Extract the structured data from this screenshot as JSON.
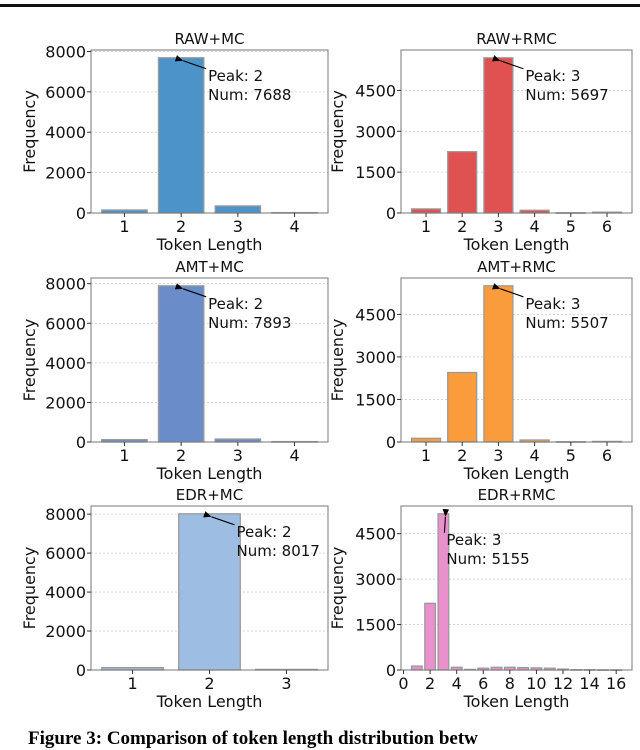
{
  "caption": {
    "label": "Figure 3:",
    "text": "Comparison of token length distribution betw"
  },
  "chart_data": [
    {
      "type": "bar",
      "title": "RAW+MC",
      "xlabel": "Token Length",
      "ylabel": "Frequency",
      "color": "#4b93c9",
      "categories": [
        1,
        2,
        3,
        4
      ],
      "values": [
        150,
        7688,
        350,
        20
      ],
      "xticks": [
        1,
        2,
        3,
        4
      ],
      "yticks": [
        0,
        2000,
        4000,
        6000,
        8000
      ],
      "ylim": [
        0,
        8072
      ],
      "annotation": {
        "peak": 2,
        "num": 7688,
        "line1": "Peak: 2",
        "line2": "Num: 7688"
      },
      "grid": true
    },
    {
      "type": "bar",
      "title": "RAW+RMC",
      "xlabel": "Token Length",
      "ylabel": "Frequency",
      "color": "#e05252",
      "categories": [
        1,
        2,
        3,
        4,
        5,
        6
      ],
      "values": [
        150,
        2250,
        5697,
        100,
        10,
        30
      ],
      "xticks": [
        1,
        2,
        3,
        4,
        5,
        6
      ],
      "yticks": [
        0,
        1500,
        3000,
        4500
      ],
      "ylim": [
        0,
        5982
      ],
      "annotation": {
        "peak": 3,
        "num": 5697,
        "line1": "Peak: 3",
        "line2": "Num: 5697"
      },
      "grid": true
    },
    {
      "type": "bar",
      "title": "AMT+MC",
      "xlabel": "Token Length",
      "ylabel": "Frequency",
      "color": "#6a8cc8",
      "categories": [
        1,
        2,
        3,
        4
      ],
      "values": [
        120,
        7893,
        150,
        20
      ],
      "xticks": [
        1,
        2,
        3,
        4
      ],
      "yticks": [
        0,
        2000,
        4000,
        6000,
        8000
      ],
      "ylim": [
        0,
        8288
      ],
      "annotation": {
        "peak": 2,
        "num": 7893,
        "line1": "Peak: 2",
        "line2": "Num: 7893"
      },
      "grid": true
    },
    {
      "type": "bar",
      "title": "AMT+RMC",
      "xlabel": "Token Length",
      "ylabel": "Frequency",
      "color": "#fa9b3c",
      "categories": [
        1,
        2,
        3,
        4,
        5,
        6
      ],
      "values": [
        130,
        2450,
        5507,
        70,
        10,
        20
      ],
      "xticks": [
        1,
        2,
        3,
        4,
        5,
        6
      ],
      "yticks": [
        0,
        1500,
        3000,
        4500
      ],
      "ylim": [
        0,
        5782
      ],
      "annotation": {
        "peak": 3,
        "num": 5507,
        "line1": "Peak: 3",
        "line2": "Num: 5507"
      },
      "grid": true
    },
    {
      "type": "bar",
      "title": "EDR+MC",
      "xlabel": "Token Length",
      "ylabel": "Frequency",
      "color": "#9dbee2",
      "categories": [
        1,
        2,
        3
      ],
      "values": [
        120,
        8017,
        30
      ],
      "xticks": [
        1,
        2,
        3
      ],
      "yticks": [
        0,
        2000,
        4000,
        6000,
        8000
      ],
      "ylim": [
        0,
        8418
      ],
      "annotation": {
        "peak": 2,
        "num": 8017,
        "line1": "Peak: 2",
        "line2": "Num: 8017"
      },
      "grid": true
    },
    {
      "type": "bar",
      "title": "EDR+RMC",
      "xlabel": "Token Length",
      "ylabel": "Frequency",
      "color": "#ea90cc",
      "categories": [
        1,
        2,
        3,
        4,
        5,
        6,
        7,
        8,
        9,
        10,
        11,
        12,
        13,
        14,
        15,
        16
      ],
      "values": [
        130,
        2200,
        5155,
        90,
        20,
        60,
        90,
        90,
        80,
        70,
        60,
        30,
        10,
        10,
        5,
        5
      ],
      "xticks": [
        0,
        2,
        4,
        6,
        8,
        10,
        12,
        14,
        16
      ],
      "yticks": [
        0,
        1500,
        3000,
        4500
      ],
      "ylim": [
        0,
        5413
      ],
      "annotation": {
        "peak": 3,
        "num": 5155,
        "line1": "Peak: 3",
        "line2": "Num: 5155"
      },
      "grid": true
    }
  ]
}
